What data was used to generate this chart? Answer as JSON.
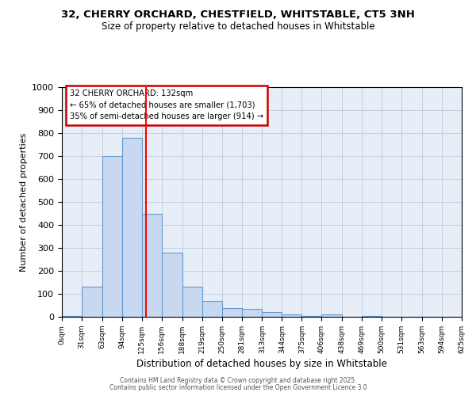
{
  "title_line1": "32, CHERRY ORCHARD, CHESTFIELD, WHITSTABLE, CT5 3NH",
  "title_line2": "Size of property relative to detached houses in Whitstable",
  "xlabel": "Distribution of detached houses by size in Whitstable",
  "ylabel": "Number of detached properties",
  "bin_edges": [
    0,
    31,
    63,
    94,
    125,
    156,
    188,
    219,
    250,
    281,
    313,
    344,
    375,
    406,
    438,
    469,
    500,
    531,
    563,
    594,
    625
  ],
  "bin_labels": [
    "0sqm",
    "31sqm",
    "63sqm",
    "94sqm",
    "125sqm",
    "156sqm",
    "188sqm",
    "219sqm",
    "250sqm",
    "281sqm",
    "313sqm",
    "344sqm",
    "375sqm",
    "406sqm",
    "438sqm",
    "469sqm",
    "500sqm",
    "531sqm",
    "563sqm",
    "594sqm",
    "625sqm"
  ],
  "bar_heights": [
    5,
    130,
    700,
    780,
    450,
    280,
    130,
    70,
    38,
    35,
    22,
    10,
    5,
    12,
    0,
    5,
    0,
    0,
    0,
    0
  ],
  "bar_color": "#c8d8f0",
  "bar_edge_color": "#6699cc",
  "red_line_x": 132,
  "annotation_line1": "32 CHERRY ORCHARD: 132sqm",
  "annotation_line2": "← 65% of detached houses are smaller (1,703)",
  "annotation_line3": "35% of semi-detached houses are larger (914) →",
  "annotation_box_color": "#ffffff",
  "annotation_box_edge": "#cc0000",
  "ylim": [
    0,
    1000
  ],
  "yticks": [
    0,
    100,
    200,
    300,
    400,
    500,
    600,
    700,
    800,
    900,
    1000
  ],
  "grid_color": "#bbccdd",
  "background_color": "#e8eef8",
  "footer_line1": "Contains HM Land Registry data © Crown copyright and database right 2025.",
  "footer_line2": "Contains public sector information licensed under the Open Government Licence 3.0"
}
